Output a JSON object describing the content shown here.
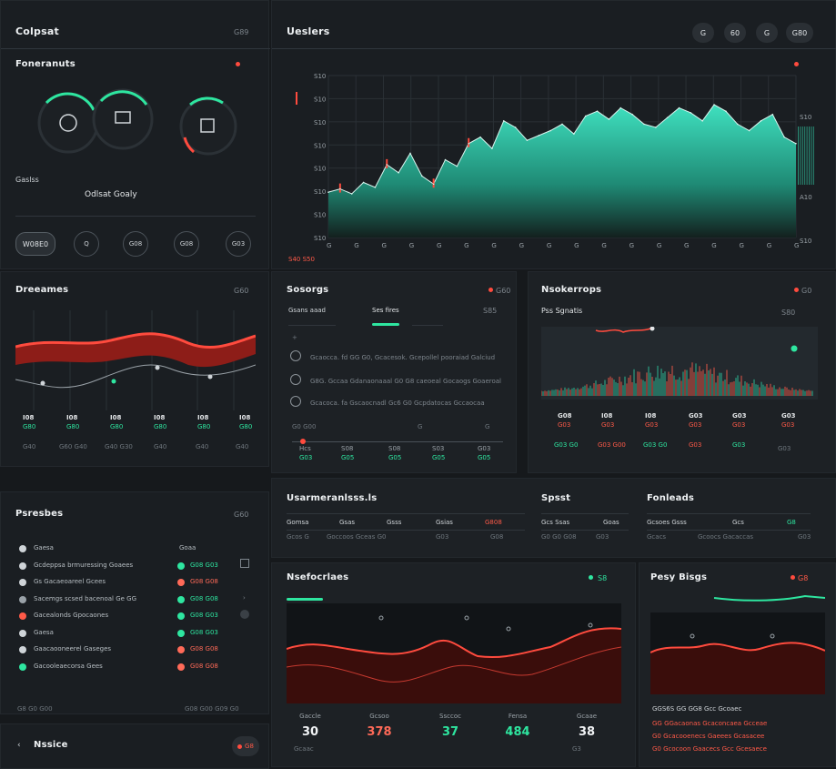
{
  "colors": {
    "accent": "#2ee6a0",
    "danger": "#ff4b3e",
    "bg": "#16191c",
    "panel": "#1d2125"
  },
  "left_top": {
    "title": "Colpsat",
    "meta": "G89",
    "section_title": "Foneranuts",
    "gauges_label": "Gaslss",
    "gauges_sub": "Odlsat Goaly",
    "buttons": [
      "W08E0",
      "Q",
      "G08",
      "G08",
      "G03"
    ]
  },
  "main_chart": {
    "title": "Ueslers",
    "top_buttons": [
      "G",
      "60",
      "G",
      "G80"
    ],
    "y_ticks": [
      "S10",
      "S10",
      "S10",
      "S10",
      "S10",
      "S10",
      "S10",
      "S10"
    ],
    "x_ticks": [
      "G",
      "G",
      "G",
      "G",
      "G",
      "G",
      "G",
      "G",
      "G",
      "G",
      "G",
      "G",
      "G",
      "G",
      "G",
      "G",
      "G",
      "G"
    ],
    "right_labels": [
      "S10",
      "A10",
      "S10"
    ],
    "footer": "S40 S50"
  },
  "chart_data": {
    "type": "area",
    "x": [
      0,
      1,
      2,
      3,
      4,
      5,
      6,
      7,
      8,
      9,
      10,
      11,
      12,
      13,
      14,
      15,
      16,
      17,
      18,
      19,
      20,
      21,
      22,
      23,
      24,
      25,
      26,
      27,
      28,
      29,
      30,
      31,
      32,
      33,
      34,
      35,
      36,
      37,
      38,
      39,
      40
    ],
    "series": [
      {
        "values": [
          28,
          30,
          27,
          34,
          31,
          45,
          40,
          52,
          38,
          33,
          48,
          44,
          58,
          62,
          55,
          72,
          68,
          60,
          63,
          66,
          70,
          64,
          75,
          78,
          73,
          80,
          76,
          70,
          68,
          74,
          80,
          77,
          72,
          82,
          78,
          70,
          66,
          72,
          76,
          62,
          58
        ]
      }
    ],
    "ylim": [
      0,
      100
    ]
  },
  "performers": {
    "title": "Dreeames",
    "meta": "G60",
    "stats": [
      {
        "value": "I08",
        "label": "G80"
      },
      {
        "value": "I08",
        "label": "G80"
      },
      {
        "value": "I08",
        "label": "G80"
      },
      {
        "value": "I08",
        "label": "G80"
      },
      {
        "value": "I08",
        "label": "G80"
      },
      {
        "value": "I08",
        "label": "G80"
      }
    ],
    "footer": [
      "G40",
      "G60 G40",
      "G40 G30",
      "G40",
      "G40",
      "G40"
    ]
  },
  "settings": {
    "title": "Sosorgs",
    "meta": "G60",
    "tabs": [
      "Gsans aaad",
      "Ses fires"
    ],
    "tab_meta": "S85",
    "items": [
      "Gcaocca. fd GG G0, Gcacesok. Gcepollel pooraiad Galciud",
      "G8G. Gccaa Gdanaonaaal G0 G8 caeoeal Gocaogs Goaeroal",
      "Gcacoca. fa Gscaocnadl Gc6 G0 Gcpdatocas Gccaocaa"
    ],
    "footer_left": "G0 G00",
    "footer_right": [
      "G",
      "G"
    ],
    "bottom": [
      {
        "label": "Hcs",
        "value": "G03"
      },
      {
        "label": "S08",
        "value": "G05"
      },
      {
        "label": "S08",
        "value": "G05"
      },
      {
        "label": "S03",
        "value": "G05"
      },
      {
        "label": "G03",
        "value": "G05"
      }
    ]
  },
  "notes_panel": {
    "title": "Nsokerrops",
    "meta": "G0",
    "subtitle": "Pss Sgnatis",
    "sub_meta": "S80",
    "stats": [
      {
        "value": "G08",
        "label": "G03"
      },
      {
        "value": "I08",
        "label": "G03"
      },
      {
        "value": "I08",
        "label": "G03"
      },
      {
        "value": "G03",
        "label": "G03"
      },
      {
        "value": "G03",
        "label": "G03"
      },
      {
        "value": "G03",
        "label": "G03"
      }
    ],
    "footer": [
      "G03 G0",
      "G03 G00",
      "G03 G0",
      "G03",
      "G03",
      "G03"
    ]
  },
  "pierestions": {
    "title": "Psresbes",
    "meta": "G60",
    "rows": [
      {
        "text": "Gaesa",
        "status": "Goaa"
      },
      {
        "text": "Gcdeppsa brmuressing Goaees",
        "status": "G08 G03"
      },
      {
        "text": "Gs Gacaeoareel Gcees",
        "status": "G08 G08"
      },
      {
        "text": "Sacemgs scsed bacenoal Ge GG",
        "status": "G08 G08"
      },
      {
        "text": "Gacealonds Gpocaones",
        "status": "G08 G03"
      },
      {
        "text": "Gaesa",
        "status": "G08 G03"
      },
      {
        "text": "Gaacaooneerel Gaseges",
        "status": "G08 G08"
      },
      {
        "text": "Gacooleaecorsa Gees",
        "status": "G08 G08"
      }
    ],
    "footer_left": "G8 G0 G00",
    "footer_right": "G08 G00 G09 G0"
  },
  "bottom_left": {
    "title": "Nssice",
    "button": "G8"
  },
  "middle_row": {
    "col1_title": "Usarmeranlsss.ls",
    "col1_headers": [
      "Gomsa",
      "Gsas",
      "Gsss",
      "Gsias",
      "G808"
    ],
    "col1_values": [
      "Gcos G",
      "Goccoos Gceas G0",
      "G03",
      "G08"
    ],
    "col2_title": "Spsst",
    "col2_headers": [
      "Gcs Ssas",
      "Goas"
    ],
    "col2_values": [
      "G0 G0 G08",
      "G03"
    ],
    "col3_title": "Fonleads",
    "col3_headers": [
      "Gcsoes Gsss",
      "Gcs",
      "G8"
    ],
    "col3_values": [
      "Gcacs",
      "Gcoocs Gacaccas",
      "G03"
    ]
  },
  "bottom_chart": {
    "title": "Nsefocrlaes",
    "meta": "S8",
    "stats": [
      {
        "label": "Gaccle",
        "value": "30",
        "color": "#f1f3f5"
      },
      {
        "label": "Gcsoo",
        "value": "378",
        "color": "#ff5a48"
      },
      {
        "label": "Ssccoc",
        "value": "37",
        "color": "#2ee6a0"
      },
      {
        "label": "Fensa",
        "value": "484",
        "color": "#2ee6a0"
      },
      {
        "label": "Gcaae",
        "value": "38",
        "color": "#f1f3f5"
      }
    ],
    "footer": [
      "Gcaac",
      "G3"
    ]
  },
  "bottom_right": {
    "title": "Pesy Bisgs",
    "meta": "G8",
    "lines": [
      "GGS6S GG GG8 Gcc Gcoaec",
      "GG GGacaonas Gcaconcaea Gcceae",
      "G0 Gcacooenecs Gaeees Gcasacee",
      "G0 Gcocoon Gaacecs Gcc Gcesaece"
    ]
  }
}
